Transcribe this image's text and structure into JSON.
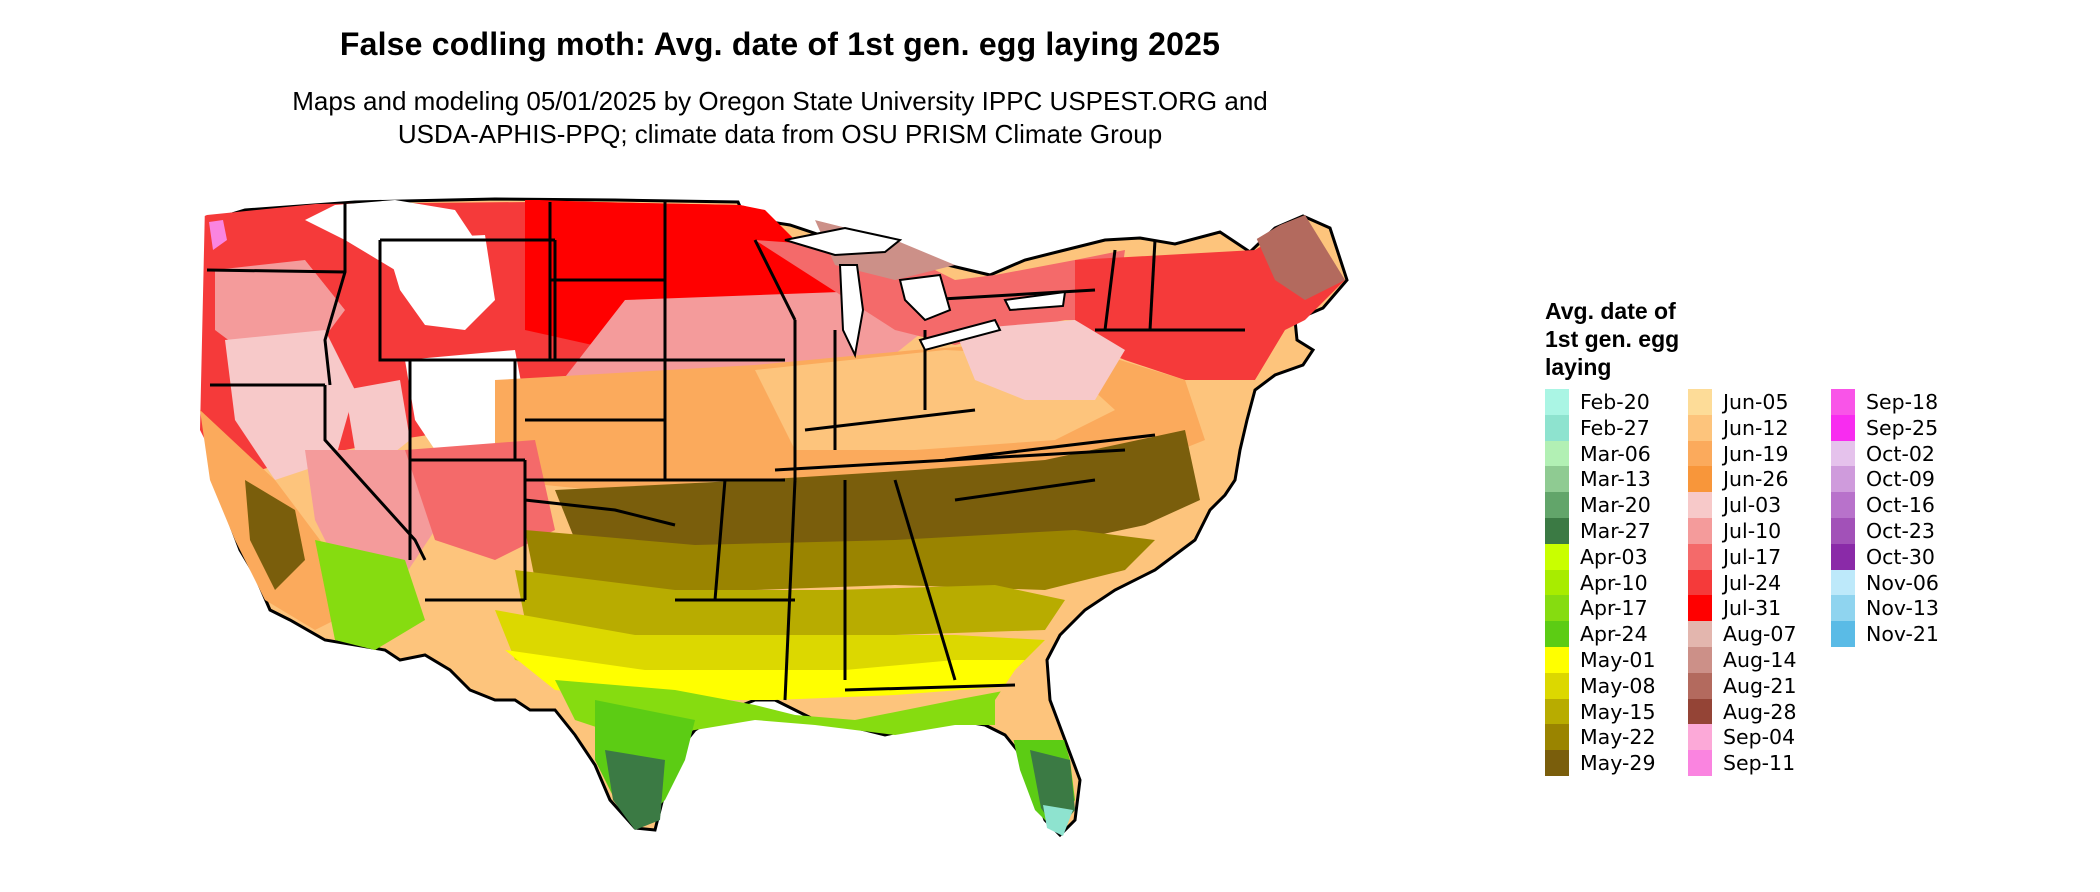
{
  "header": {
    "title": "False codling moth: Avg. date of 1st gen. egg laying 2025",
    "subtitle_line1": "Maps and modeling 05/01/2025 by Oregon State University IPPC USPEST.ORG and",
    "subtitle_line2": "USDA-APHIS-PPQ; climate data from OSU PRISM Climate Group"
  },
  "legend": {
    "title_line1": "Avg. date of",
    "title_line2": "1st gen. egg",
    "title_line3": "laying",
    "columns": [
      [
        {
          "label": "Feb-20",
          "color": "#aaf5e4"
        },
        {
          "label": "Feb-27",
          "color": "#8ee3cf"
        },
        {
          "label": "Mar-06",
          "color": "#b2f0b4"
        },
        {
          "label": "Mar-13",
          "color": "#8fcb92"
        },
        {
          "label": "Mar-20",
          "color": "#62a56a"
        },
        {
          "label": "Mar-27",
          "color": "#3b7a44"
        },
        {
          "label": "Apr-03",
          "color": "#c9ff00"
        },
        {
          "label": "Apr-10",
          "color": "#a8ec00"
        },
        {
          "label": "Apr-17",
          "color": "#86dc10"
        },
        {
          "label": "Apr-24",
          "color": "#5ccc14"
        },
        {
          "label": "May-01",
          "color": "#ffff00"
        },
        {
          "label": "May-08",
          "color": "#dcd800"
        },
        {
          "label": "May-15",
          "color": "#b8ac00"
        },
        {
          "label": "May-22",
          "color": "#9a8400"
        },
        {
          "label": "May-29",
          "color": "#7a5e0c"
        }
      ],
      [
        {
          "label": "Jun-05",
          "color": "#fddc98"
        },
        {
          "label": "Jun-12",
          "color": "#fdc47c"
        },
        {
          "label": "Jun-19",
          "color": "#fbaa5c"
        },
        {
          "label": "Jun-26",
          "color": "#f8963a"
        },
        {
          "label": "Jul-03",
          "color": "#f7c9c9"
        },
        {
          "label": "Jul-10",
          "color": "#f49b9b"
        },
        {
          "label": "Jul-17",
          "color": "#f46a6a"
        },
        {
          "label": "Jul-24",
          "color": "#f53a3a"
        },
        {
          "label": "Jul-31",
          "color": "#ff0000"
        },
        {
          "label": "Aug-07",
          "color": "#e3b6ae"
        },
        {
          "label": "Aug-14",
          "color": "#cc9088"
        },
        {
          "label": "Aug-21",
          "color": "#b36a5e"
        },
        {
          "label": "Aug-28",
          "color": "#944436"
        },
        {
          "label": "Sep-04",
          "color": "#fca9d8"
        },
        {
          "label": "Sep-11",
          "color": "#fa84e0"
        }
      ],
      [
        {
          "label": "Sep-18",
          "color": "#f954e8"
        },
        {
          "label": "Sep-25",
          "color": "#f82cf0"
        },
        {
          "label": "Oct-02",
          "color": "#e5c2ec"
        },
        {
          "label": "Oct-09",
          "color": "#cf9bdc"
        },
        {
          "label": "Oct-16",
          "color": "#b872cb"
        },
        {
          "label": "Oct-23",
          "color": "#a251b8"
        },
        {
          "label": "Oct-30",
          "color": "#8a2aa8"
        },
        {
          "label": "Nov-06",
          "color": "#bde9fa"
        },
        {
          "label": "Nov-13",
          "color": "#8fd4ef"
        },
        {
          "label": "Nov-21",
          "color": "#5abbe6"
        }
      ]
    ]
  },
  "map": {
    "name": "Contiguous United States",
    "colors": {
      "north_red": "#ff2a2a",
      "high_elevation_white": "#ffffff",
      "central_orange": "#fdc47c",
      "southern_band": "#9a8400",
      "gulf_green": "#86dc10",
      "florida_tip": "#3b7a44"
    }
  }
}
